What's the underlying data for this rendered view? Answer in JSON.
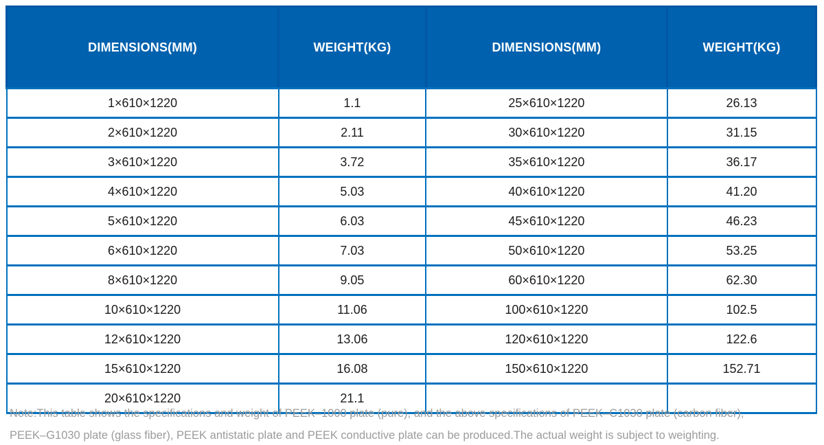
{
  "table": {
    "headers": [
      "DIMENSIONS(MM)",
      "WEIGHT(KG)",
      "DIMENSIONS(MM)",
      "WEIGHT(KG)"
    ],
    "rows": [
      {
        "cells": [
          "1×610×1220",
          "1.1",
          "25×610×1220",
          "26.13"
        ]
      },
      {
        "cells": [
          "2×610×1220",
          "2.11",
          "30×610×1220",
          "31.15"
        ]
      },
      {
        "cells": [
          "3×610×1220",
          "3.72",
          "35×610×1220",
          "36.17"
        ]
      },
      {
        "cells": [
          "4×610×1220",
          "5.03",
          "40×610×1220",
          "41.20"
        ]
      },
      {
        "cells": [
          "5×610×1220",
          "6.03",
          "45×610×1220",
          "46.23"
        ]
      },
      {
        "cells": [
          "6×610×1220",
          "7.03",
          "50×610×1220",
          "53.25"
        ]
      },
      {
        "cells": [
          "8×610×1220",
          "9.05",
          "60×610×1220",
          "62.30"
        ]
      },
      {
        "cells": [
          "10×610×1220",
          "11.06",
          "100×610×1220",
          "102.5"
        ]
      },
      {
        "cells": [
          "12×610×1220",
          "13.06",
          "120×610×1220",
          "122.6"
        ]
      },
      {
        "cells": [
          "15×610×1220",
          "16.08",
          "150×610×1220",
          "152.71"
        ]
      },
      {
        "cells": [
          "20×610×1220",
          "21.1",
          "",
          ""
        ]
      }
    ]
  },
  "note": {
    "lines": [
      "Note:This table shows the specifications and weight of PEEK–1000 plate (pure), and the above specifications of PEEK–C1030 plate (carbon fiber),",
      "PEEK–G1030 plate (glass fiber), PEEK antistatic plate and PEEK conductive plate can be produced.The actual weight is subject to weighting."
    ]
  },
  "colors": {
    "header_background": "#0061ae",
    "header_divider": "#0257a4",
    "grid_border": "#0071be",
    "header_text": "#ffffff",
    "cell_text": "#1c1c1c",
    "note_text": "#9b9b9b",
    "page_background": "#ffffff"
  }
}
